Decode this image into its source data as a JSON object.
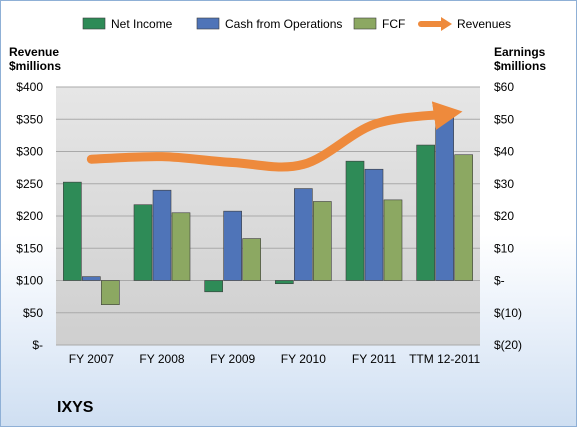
{
  "chart_data": {
    "type": "bar",
    "title": "",
    "company": "IXYS",
    "categories": [
      "FY 2007",
      "FY 2008",
      "FY 2009",
      "FY 2010",
      "FY 2011",
      "TTM 12-2011"
    ],
    "left_axis": {
      "label_line1": "Revenue",
      "label_line2": "$millions",
      "ylim": [
        0,
        400
      ],
      "ticks": [
        0,
        50,
        100,
        150,
        200,
        250,
        300,
        350,
        400
      ],
      "tick_labels": [
        "$-",
        "$50",
        "$100",
        "$150",
        "$200",
        "$250",
        "$300",
        "$350",
        "$400"
      ]
    },
    "right_axis": {
      "label_line1": "Earnings",
      "label_line2": "$millions",
      "ylim": [
        -20,
        60
      ],
      "ticks": [
        -20,
        -10,
        0,
        10,
        20,
        30,
        40,
        50,
        60
      ],
      "tick_labels": [
        "$(20)",
        "$(10)",
        "$-",
        "$10",
        "$20",
        "$30",
        "$40",
        "$50",
        "$60"
      ]
    },
    "series": [
      {
        "name": "Net Income",
        "axis": "right",
        "kind": "bar",
        "color": "#2e8b57",
        "values": [
          30.5,
          23.5,
          -3.5,
          -1,
          37,
          42
        ]
      },
      {
        "name": "Cash from Operations",
        "axis": "right",
        "kind": "bar",
        "color": "#4f74b8",
        "values": [
          1.2,
          28,
          21.5,
          28.5,
          34.5,
          51.5
        ]
      },
      {
        "name": "FCF",
        "axis": "right",
        "kind": "bar",
        "color": "#8ca862",
        "values": [
          -7.5,
          21,
          13,
          24.5,
          25,
          39
        ]
      },
      {
        "name": "Revenues",
        "axis": "left",
        "kind": "line",
        "color": "#ee8a3c",
        "values": [
          288,
          292,
          283,
          280,
          342,
          358
        ]
      }
    ],
    "grid": "horizontal",
    "legend_position": "top"
  }
}
